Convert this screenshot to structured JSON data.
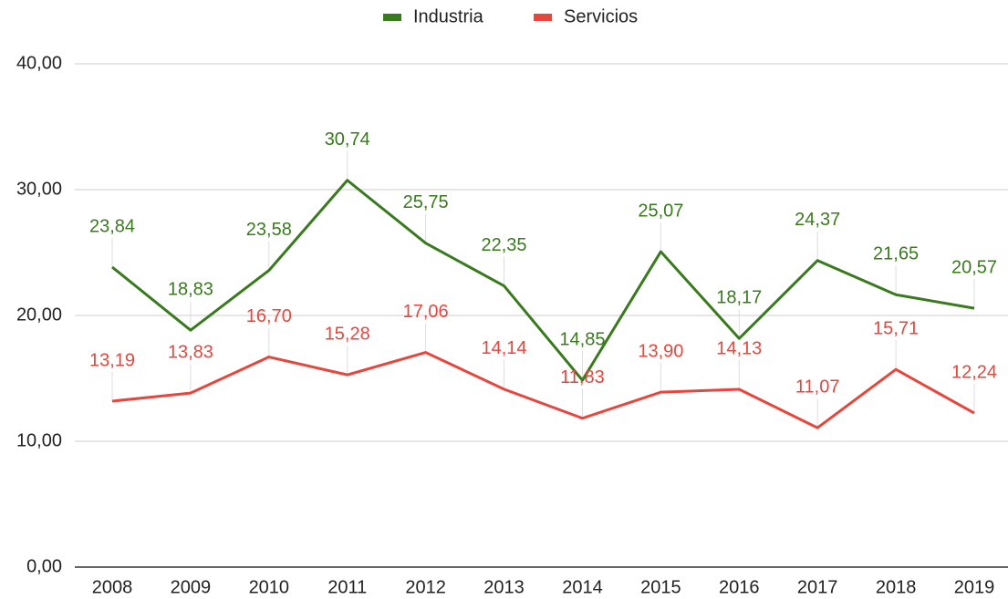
{
  "chart_data": {
    "type": "line",
    "categories": [
      "2008",
      "2009",
      "2010",
      "2011",
      "2012",
      "2013",
      "2014",
      "2015",
      "2016",
      "2017",
      "2018",
      "2019"
    ],
    "series": [
      {
        "name": "Industria",
        "color": "#3a7a1e",
        "values": [
          23.84,
          18.83,
          23.58,
          30.74,
          25.75,
          22.35,
          14.85,
          25.07,
          18.17,
          24.37,
          21.65,
          20.57
        ],
        "value_labels": [
          "23,84",
          "18,83",
          "23,58",
          "30,74",
          "25,75",
          "22,35",
          "14,85",
          "25,07",
          "18,17",
          "24,37",
          "21,65",
          "20,57"
        ]
      },
      {
        "name": "Servicios",
        "color": "#e8453c",
        "values": [
          13.19,
          13.83,
          16.7,
          15.28,
          17.06,
          14.14,
          11.83,
          13.9,
          14.13,
          11.07,
          15.71,
          12.24
        ],
        "value_labels": [
          "13,19",
          "13,83",
          "16,70",
          "15,28",
          "17,06",
          "14,14",
          "11,83",
          "13,90",
          "14,13",
          "11,07",
          "15,71",
          "12,24"
        ]
      }
    ],
    "ylim": [
      0,
      40
    ],
    "yticks": [
      {
        "value": 0,
        "label": "0,00"
      },
      {
        "value": 10,
        "label": "10,00"
      },
      {
        "value": 20,
        "label": "20,00"
      },
      {
        "value": 30,
        "label": "30,00"
      },
      {
        "value": 40,
        "label": "40,00"
      }
    ],
    "grid": true,
    "legend": "top"
  }
}
